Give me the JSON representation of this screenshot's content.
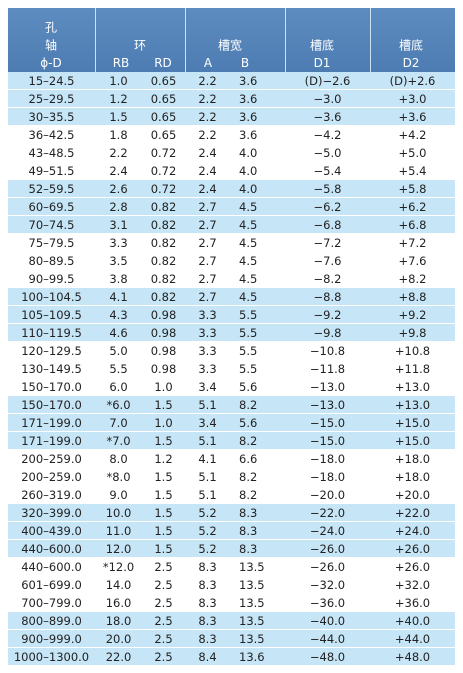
{
  "header": {
    "hole_line1": "孔",
    "hole_line2": "轴",
    "hole_line3": "ϕ-D",
    "ring": "环",
    "rb": "RB",
    "rd": "RD",
    "groove_width": "槽宽",
    "a": "A",
    "b": "B",
    "groove_bottom_1": "槽底",
    "d1": "D1",
    "groove_bottom_2": "槽底",
    "d2": "D2"
  },
  "table": {
    "rows": [
      [
        "15–24.5",
        "1.0",
        "0.65",
        "2.2",
        "3.6",
        "(D)−2.6",
        "(D)+2.6"
      ],
      [
        "25–29.5",
        "1.2",
        "0.65",
        "2.2",
        "3.6",
        "−3.0",
        "+3.0"
      ],
      [
        "30–35.5",
        "1.5",
        "0.65",
        "2.2",
        "3.6",
        "−3.6",
        "+3.6"
      ],
      [
        "36–42.5",
        "1.8",
        "0.65",
        "2.2",
        "3.6",
        "−4.2",
        "+4.2"
      ],
      [
        "43–48.5",
        "2.2",
        "0.72",
        "2.4",
        "4.0",
        "−5.0",
        "+5.0"
      ],
      [
        "49–51.5",
        "2.4",
        "0.72",
        "2.4",
        "4.0",
        "−5.4",
        "+5.4"
      ],
      [
        "52–59.5",
        "2.6",
        "0.72",
        "2.4",
        "4.0",
        "−5.8",
        "+5.8"
      ],
      [
        "60–69.5",
        "2.8",
        "0.82",
        "2.7",
        "4.5",
        "−6.2",
        "+6.2"
      ],
      [
        "70–74.5",
        "3.1",
        "0.82",
        "2.7",
        "4.5",
        "−6.8",
        "+6.8"
      ],
      [
        "75–79.5",
        "3.3",
        "0.82",
        "2.7",
        "4.5",
        "−7.2",
        "+7.2"
      ],
      [
        "80–89.5",
        "3.5",
        "0.82",
        "2.7",
        "4.5",
        "−7.6",
        "+7.6"
      ],
      [
        "90–99.5",
        "3.8",
        "0.82",
        "2.7",
        "4.5",
        "−8.2",
        "+8.2"
      ],
      [
        "100–104.5",
        "4.1",
        "0.82",
        "2.7",
        "4.5",
        "−8.8",
        "+8.8"
      ],
      [
        "105–109.5",
        "4.3",
        "0.98",
        "3.3",
        "5.5",
        "−9.2",
        "+9.2"
      ],
      [
        "110–119.5",
        "4.6",
        "0.98",
        "3.3",
        "5.5",
        "−9.8",
        "+9.8"
      ],
      [
        "120–129.5",
        "5.0",
        "0.98",
        "3.3",
        "5.5",
        "−10.8",
        "+10.8"
      ],
      [
        "130–149.5",
        "5.5",
        "0.98",
        "3.3",
        "5.5",
        "−11.8",
        "+11.8"
      ],
      [
        "150–170.0",
        "6.0",
        "1.0",
        "3.4",
        "5.6",
        "−13.0",
        "+13.0"
      ],
      [
        "150–170.0",
        "*6.0",
        "1.5",
        "5.1",
        "8.2",
        "−13.0",
        "+13.0"
      ],
      [
        "171–199.0",
        "7.0",
        "1.0",
        "3.4",
        "5.6",
        "−15.0",
        "+15.0"
      ],
      [
        "171–199.0",
        "*7.0",
        "1.5",
        "5.1",
        "8.2",
        "−15.0",
        "+15.0"
      ],
      [
        "200–259.0",
        "8.0",
        "1.2",
        "4.1",
        "6.6",
        "−18.0",
        "+18.0"
      ],
      [
        "200–259.0",
        "*8.0",
        "1.5",
        "5.1",
        "8.2",
        "−18.0",
        "+18.0"
      ],
      [
        "260–319.0",
        "9.0",
        "1.5",
        "5.1",
        "8.2",
        "−20.0",
        "+20.0"
      ],
      [
        "320–399.0",
        "10.0",
        "1.5",
        "5.2",
        "8.3",
        "−22.0",
        "+22.0"
      ],
      [
        "400–439.0",
        "11.0",
        "1.5",
        "5.2",
        "8.3",
        "−24.0",
        "+24.0"
      ],
      [
        "440–600.0",
        "12.0",
        "1.5",
        "5.2",
        "8.3",
        "−26.0",
        "+26.0"
      ],
      [
        "440–600.0",
        "*12.0",
        "2.5",
        "8.3",
        "13.5",
        "−26.0",
        "+26.0"
      ],
      [
        "601–699.0",
        "14.0",
        "2.5",
        "8.3",
        "13.5",
        "−32.0",
        "+32.0"
      ],
      [
        "700–799.0",
        "16.0",
        "2.5",
        "8.3",
        "13.5",
        "−36.0",
        "+36.0"
      ],
      [
        "800–899.0",
        "18.0",
        "2.5",
        "8.3",
        "13.5",
        "−40.0",
        "+40.0"
      ],
      [
        "900–999.0",
        "20.0",
        "2.5",
        "8.3",
        "13.5",
        "−44.0",
        "+44.0"
      ],
      [
        "1000–1300.0",
        "22.0",
        "2.5",
        "8.4",
        "13.6",
        "−48.0",
        "+48.0"
      ]
    ]
  }
}
